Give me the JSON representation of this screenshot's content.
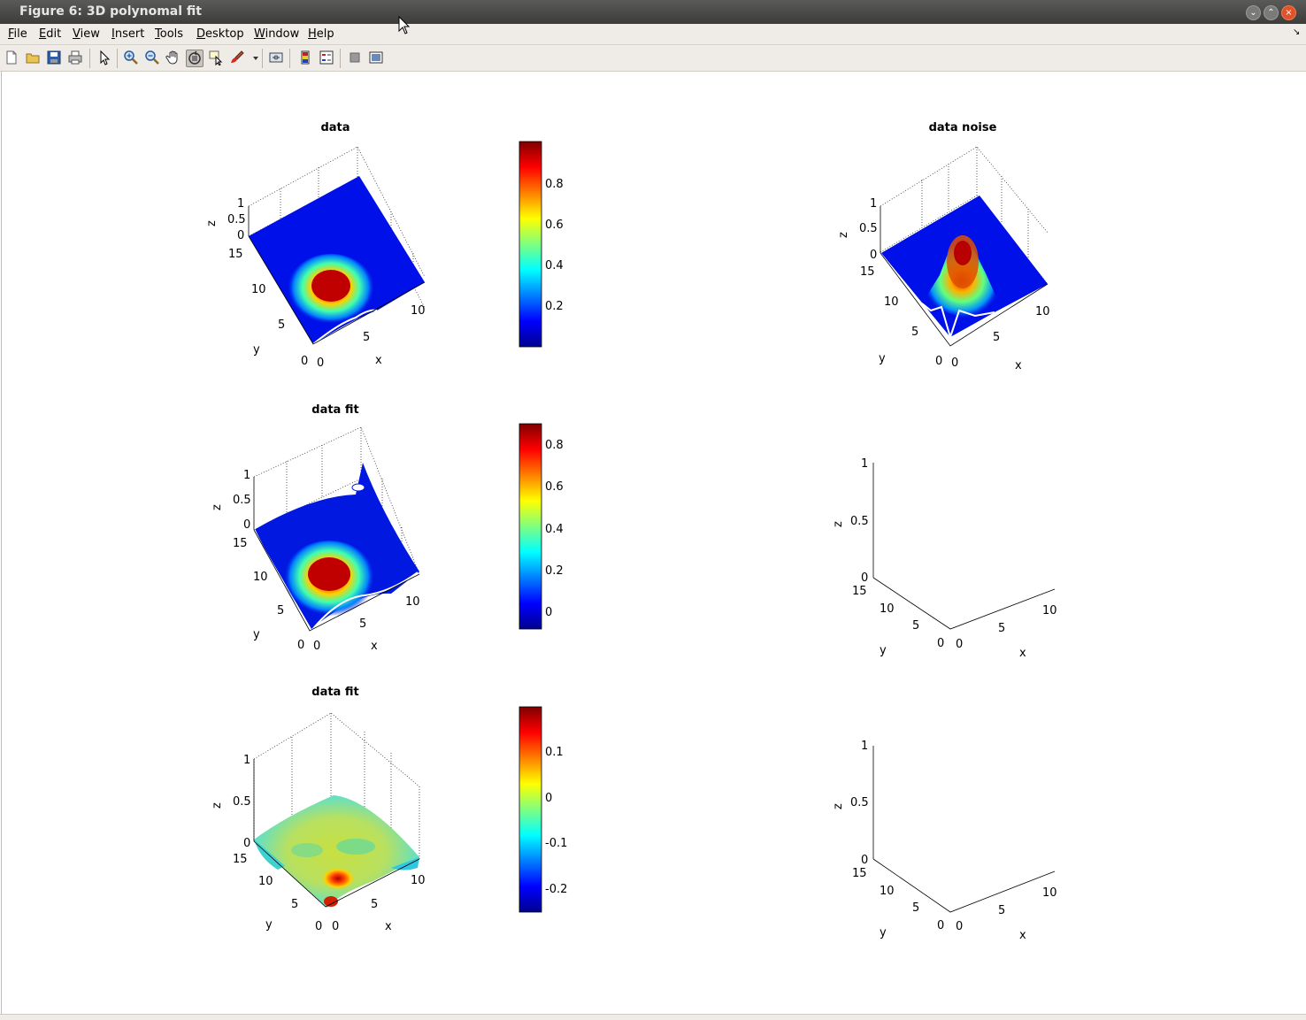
{
  "window": {
    "title": "Figure 6: 3D polynomal fit"
  },
  "menu": [
    {
      "label": "File",
      "u": "F",
      "rest": "ile"
    },
    {
      "label": "Edit",
      "u": "E",
      "rest": "dit"
    },
    {
      "label": "View",
      "u": "V",
      "rest": "iew"
    },
    {
      "label": "Insert",
      "u": "I",
      "rest": "nsert"
    },
    {
      "label": "Tools",
      "u": "T",
      "rest": "ools"
    },
    {
      "label": "Desktop",
      "u": "D",
      "rest": "esktop"
    },
    {
      "label": "Window",
      "u": "W",
      "rest": "indow"
    },
    {
      "label": "Help",
      "u": "H",
      "rest": "elp"
    }
  ],
  "toolbar": [
    "new-figure-icon",
    "open-file-icon",
    "save-icon",
    "print-icon",
    "edit-plot-arrow-icon",
    "zoom-in-icon",
    "zoom-out-icon",
    "pan-hand-icon",
    "rotate-3d-icon",
    "data-cursor-icon",
    "brush-icon",
    "brush-dropdown-icon",
    "link-plot-icon",
    "insert-colorbar-icon",
    "insert-legend-icon",
    "hide-plot-tools-icon",
    "show-plot-tools-icon"
  ],
  "chart_data": [
    {
      "type": "surface",
      "title": "data",
      "xlabel": "x",
      "ylabel": "y",
      "zlabel": "z",
      "xticks": [
        "0",
        "5",
        "10"
      ],
      "yticks": [
        "0",
        "5",
        "10",
        "15"
      ],
      "zticks": [
        "0",
        "0.5",
        "1"
      ],
      "colorbar": {
        "ticks": [
          "0.2",
          "0.4",
          "0.6",
          "0.8"
        ],
        "range": [
          0,
          1
        ]
      },
      "surface": "gaussian peak near x=2, y=4, flat elsewhere"
    },
    {
      "type": "surface",
      "title": "data noise",
      "xlabel": "x",
      "ylabel": "y",
      "zlabel": "z",
      "xticks": [
        "0",
        "5",
        "10"
      ],
      "yticks": [
        "0",
        "5",
        "10",
        "15"
      ],
      "zticks": [
        "0",
        "0.5",
        "1"
      ],
      "surface": "noisy gaussian peak at center"
    },
    {
      "type": "surface",
      "title": "data fit",
      "xlabel": "x",
      "ylabel": "y",
      "zlabel": "z",
      "xticks": [
        "0",
        "5",
        "10"
      ],
      "yticks": [
        "0",
        "5",
        "10",
        "15"
      ],
      "zticks": [
        "0",
        "0.5",
        "1"
      ],
      "colorbar": {
        "ticks": [
          "0",
          "0.2",
          "0.4",
          "0.6",
          "0.8"
        ],
        "range": [
          -0.05,
          0.9
        ]
      },
      "surface": "polynomial fit of gaussian peak"
    },
    {
      "type": "empty-3d-axes",
      "title": "",
      "xlabel": "x",
      "ylabel": "y",
      "zlabel": "z",
      "xticks": [
        "0",
        "5",
        "10"
      ],
      "yticks": [
        "0",
        "5",
        "10",
        "15"
      ],
      "zticks": [
        "0",
        "0.5",
        "1"
      ]
    },
    {
      "type": "surface",
      "title": "data fit",
      "xlabel": "x",
      "ylabel": "y",
      "zlabel": "z",
      "xticks": [
        "0",
        "5",
        "10"
      ],
      "yticks": [
        "0",
        "5",
        "10",
        "15"
      ],
      "zticks": [
        "0",
        "0.5",
        "1"
      ],
      "colorbar": {
        "ticks": [
          "-0.2",
          "-0.1",
          "0",
          "0.1"
        ],
        "range": [
          -0.25,
          0.2
        ]
      },
      "surface": "residual of fit, wavy around 0"
    },
    {
      "type": "empty-3d-axes",
      "title": "",
      "xlabel": "x",
      "ylabel": "y",
      "zlabel": "z",
      "xticks": [
        "0",
        "5",
        "10"
      ],
      "yticks": [
        "0",
        "5",
        "10",
        "15"
      ],
      "zticks": [
        "0",
        "0.5",
        "1"
      ]
    }
  ]
}
